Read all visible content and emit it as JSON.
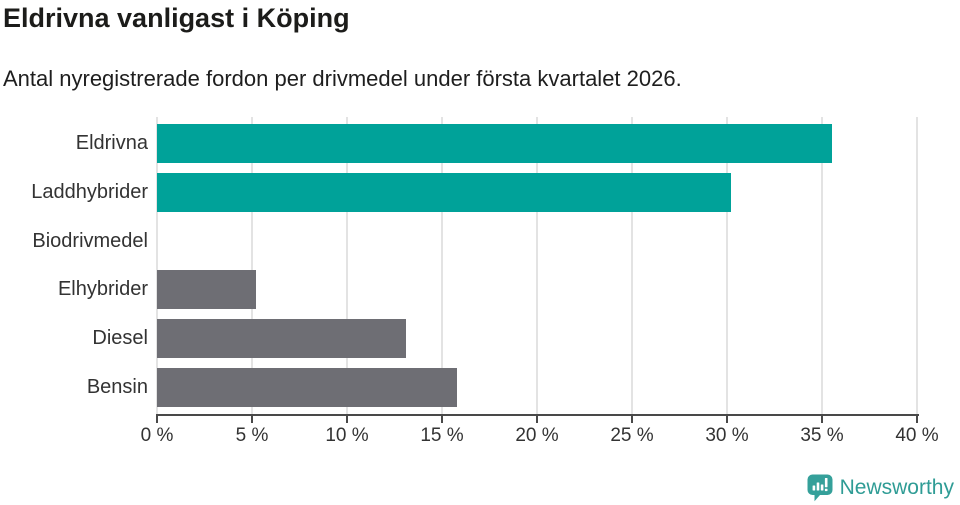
{
  "header": {
    "title": "Eldrivna vanligast i Köping",
    "subtitle": "Antal nyregistrerade fordon per drivmedel under första kvartalet 2026."
  },
  "chart_data": {
    "type": "bar",
    "orientation": "horizontal",
    "title": "Eldrivna vanligast i Köping",
    "subtitle": "Antal nyregistrerade fordon per drivmedel under första kvartalet 2026.",
    "categories": [
      "Eldrivna",
      "Laddhybrider",
      "Biodrivmedel",
      "Elhybrider",
      "Diesel",
      "Bensin"
    ],
    "values": [
      35.5,
      30.2,
      0,
      5.2,
      13.1,
      15.8
    ],
    "unit": "%",
    "bar_colors": [
      "#00a299",
      "#00a299",
      "#00a299",
      "#6e6e74",
      "#6e6e74",
      "#6e6e74"
    ],
    "xlabel": "",
    "ylabel": "",
    "xlim": [
      0,
      40
    ],
    "x_ticks": [
      0,
      5,
      10,
      15,
      20,
      25,
      30,
      35,
      40
    ],
    "x_tick_labels": [
      "0 %",
      "5 %",
      "10 %",
      "15 %",
      "20 %",
      "25 %",
      "30 %",
      "35 %",
      "40 %"
    ],
    "grid": "vertical",
    "legend": false
  },
  "colors": {
    "accent_teal": "#00a299",
    "neutral_gray": "#6e6e74",
    "gridline": "#e3e3e3",
    "axis": "#494949",
    "logo_teal": "#35a09a",
    "brand_text": "#2f9c95"
  },
  "footer": {
    "brand": "Newsworthy"
  }
}
